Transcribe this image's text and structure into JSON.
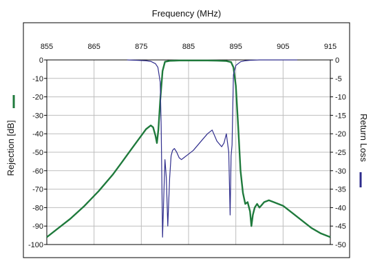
{
  "chart_data": {
    "type": "line",
    "title": "Frequency (MHz)",
    "xlabel": "Frequency (MHz)",
    "ylabel_left": "Rejection [dB]",
    "ylabel_right": "Return Loss",
    "xlim": [
      855,
      915
    ],
    "ylim_left": [
      -100,
      0
    ],
    "ylim_right": [
      -50,
      0
    ],
    "x_ticks": [
      "855",
      "865",
      "875",
      "885",
      "895",
      "905",
      "915"
    ],
    "y_ticks_left": [
      "0",
      "-10",
      "-20",
      "-30",
      "-40",
      "-50",
      "-60",
      "-70",
      "-80",
      "-90",
      "-100"
    ],
    "y_ticks_right": [
      "0",
      "-5",
      "-10",
      "-15",
      "-20",
      "-25",
      "-30",
      "-35",
      "-40",
      "-45",
      "-50"
    ],
    "grid": true,
    "colors": {
      "rejection": "#1f7a3c",
      "return_loss": "#2e2c8c",
      "grid": "#bdbdbd",
      "frame": "#000000"
    },
    "series": [
      {
        "name": "Rejection [dB]",
        "axis": "left",
        "x": [
          855,
          857,
          860,
          863,
          866,
          869,
          871,
          873,
          875,
          876,
          877,
          877.5,
          878,
          878.3,
          878.6,
          879,
          879.5,
          880,
          881,
          883,
          885,
          887,
          889,
          891,
          893,
          894,
          894.5,
          895,
          895.5,
          896,
          896.5,
          897,
          897.5,
          898,
          898.3,
          898.6,
          899,
          899.5,
          900,
          901,
          902,
          903,
          905,
          907,
          909,
          911,
          913,
          915
        ],
        "y": [
          -96,
          -92,
          -86,
          -79,
          -71,
          -62,
          -55,
          -48,
          -41,
          -37.5,
          -35.5,
          -36.5,
          -41,
          -45,
          -38,
          -22,
          -6,
          -1,
          -0.5,
          -0.3,
          -0.3,
          -0.3,
          -0.3,
          -0.4,
          -0.6,
          -1.2,
          -4,
          -14,
          -36,
          -60,
          -72,
          -78,
          -77,
          -82,
          -90,
          -84,
          -80,
          -78,
          -80,
          -77,
          -76,
          -77,
          -79,
          -83,
          -87,
          -91,
          -94,
          -96
        ]
      },
      {
        "name": "Return Loss",
        "axis": "right",
        "x": [
          872,
          874,
          876,
          877,
          878,
          878.5,
          879,
          879.2,
          879.5,
          879.8,
          880,
          880.3,
          880.6,
          881,
          881.3,
          881.6,
          882,
          882.5,
          883,
          883.5,
          884,
          885,
          886,
          887,
          888,
          889,
          890,
          891,
          892,
          892.5,
          893,
          893.5,
          893.8,
          894,
          894.2,
          894.5,
          895,
          896,
          897,
          898,
          900,
          903,
          906,
          908
        ],
        "y": [
          0,
          -0.1,
          -0.2,
          -0.4,
          -1,
          -2,
          -6,
          -18,
          -48,
          -35,
          -27,
          -32,
          -45,
          -32,
          -26,
          -24.5,
          -24,
          -25,
          -26.5,
          -27,
          -26.5,
          -25.5,
          -24.5,
          -23,
          -21.5,
          -20,
          -19,
          -22,
          -23.5,
          -22.5,
          -20,
          -25,
          -42,
          -26,
          -23,
          -4,
          -1.5,
          -0.5,
          -0.2,
          -0.1,
          0,
          0,
          0,
          0
        ]
      }
    ]
  }
}
